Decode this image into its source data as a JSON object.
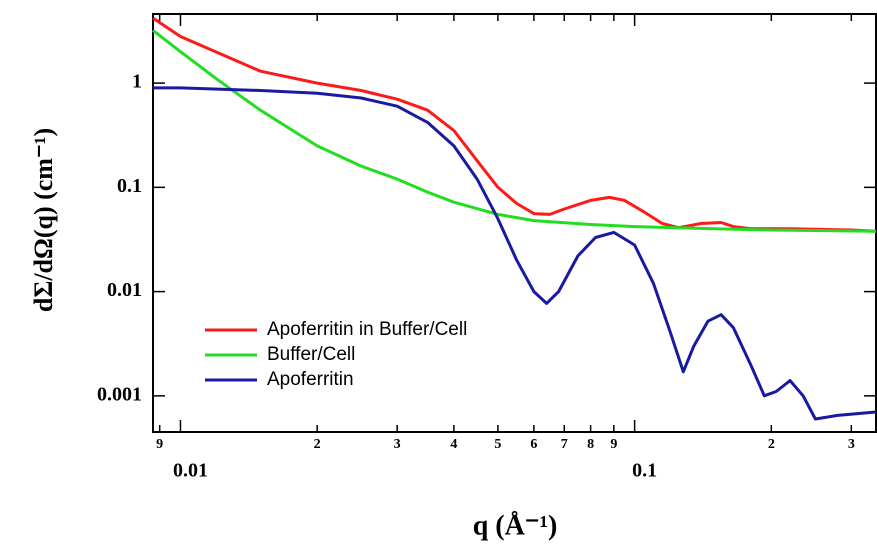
{
  "chart_data": {
    "type": "line",
    "x_label": "q (Å⁻¹)",
    "y_label": "dΣ/dΩ(q) (cm⁻¹)",
    "xscale": "log",
    "yscale": "log",
    "xlim": [
      0.0087,
      0.34
    ],
    "ylim": [
      0.00045,
      4.6
    ],
    "xticks": [
      {
        "value": 0.009,
        "label": "9"
      },
      {
        "value": 0.01,
        "label": "0.01"
      },
      {
        "value": 0.02,
        "label": "2"
      },
      {
        "value": 0.03,
        "label": "3"
      },
      {
        "value": 0.04,
        "label": "4"
      },
      {
        "value": 0.05,
        "label": "5"
      },
      {
        "value": 0.06,
        "label": "6"
      },
      {
        "value": 0.07,
        "label": "7"
      },
      {
        "value": 0.08,
        "label": "8"
      },
      {
        "value": 0.09,
        "label": "9"
      },
      {
        "value": 0.1,
        "label": "0.1"
      },
      {
        "value": 0.2,
        "label": "2"
      },
      {
        "value": 0.3,
        "label": "3"
      }
    ],
    "yticks": [
      0.001,
      0.01,
      0.1,
      1
    ],
    "legend": "lower left",
    "series": [
      {
        "name": "Apoferritin in Buffer/Cell",
        "color": "#ff1a1a",
        "x": [
          0.0087,
          0.01,
          0.015,
          0.02,
          0.025,
          0.03,
          0.035,
          0.04,
          0.045,
          0.05,
          0.055,
          0.06,
          0.065,
          0.07,
          0.08,
          0.088,
          0.095,
          0.105,
          0.115,
          0.125,
          0.14,
          0.155,
          0.165,
          0.18,
          0.22,
          0.3,
          0.34
        ],
        "values": [
          4.2,
          2.8,
          1.3,
          1.0,
          0.85,
          0.7,
          0.55,
          0.35,
          0.18,
          0.1,
          0.07,
          0.056,
          0.055,
          0.062,
          0.075,
          0.08,
          0.075,
          0.058,
          0.045,
          0.041,
          0.045,
          0.046,
          0.042,
          0.04,
          0.04,
          0.039,
          0.038
        ]
      },
      {
        "name": "Buffer/Cell",
        "color": "#22dd22",
        "x": [
          0.0087,
          0.01,
          0.012,
          0.015,
          0.02,
          0.025,
          0.03,
          0.035,
          0.04,
          0.05,
          0.06,
          0.08,
          0.1,
          0.15,
          0.2,
          0.34
        ],
        "values": [
          3.2,
          2.0,
          1.1,
          0.55,
          0.25,
          0.16,
          0.12,
          0.09,
          0.072,
          0.055,
          0.048,
          0.044,
          0.042,
          0.04,
          0.039,
          0.038
        ]
      },
      {
        "name": "Apoferritin",
        "color": "#1a1aa0",
        "x": [
          0.0087,
          0.01,
          0.015,
          0.02,
          0.025,
          0.03,
          0.035,
          0.04,
          0.045,
          0.05,
          0.055,
          0.06,
          0.064,
          0.068,
          0.075,
          0.082,
          0.09,
          0.1,
          0.11,
          0.12,
          0.128,
          0.135,
          0.145,
          0.155,
          0.165,
          0.18,
          0.193,
          0.205,
          0.22,
          0.235,
          0.25,
          0.28,
          0.34
        ],
        "values": [
          0.9,
          0.9,
          0.85,
          0.8,
          0.72,
          0.6,
          0.42,
          0.25,
          0.12,
          0.05,
          0.02,
          0.01,
          0.0077,
          0.01,
          0.022,
          0.033,
          0.037,
          0.028,
          0.012,
          0.004,
          0.0017,
          0.003,
          0.0052,
          0.006,
          0.0045,
          0.002,
          0.001,
          0.0011,
          0.0014,
          0.001,
          0.0006,
          0.00065,
          0.0007
        ]
      }
    ]
  }
}
